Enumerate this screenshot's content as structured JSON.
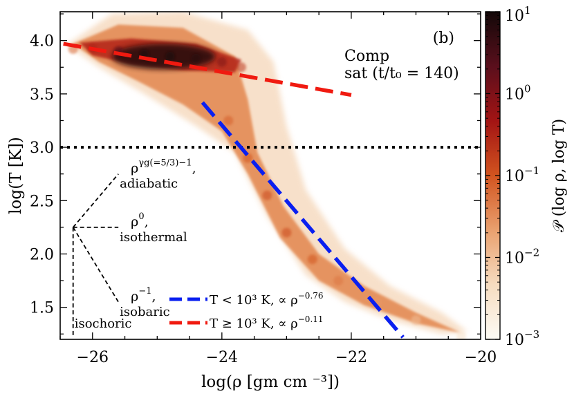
{
  "chart_data": {
    "type": "heatmap",
    "panel_label": "(b)",
    "annotation_line1": "Comp",
    "annotation_line2": "sat (t/t₀ = 140)",
    "xlabel": "log(ρ [gm cm ⁻³])",
    "ylabel": "log(T [K])",
    "xlim": [
      -26.5,
      -20.0
    ],
    "ylim": [
      1.2,
      4.27
    ],
    "x_ticks": [
      -26,
      -24,
      -22,
      -20
    ],
    "x_tick_labels": [
      "−26",
      "−24",
      "−22",
      "−20"
    ],
    "y_ticks": [
      1.5,
      2.0,
      2.5,
      3.0,
      3.5,
      4.0
    ],
    "y_tick_labels": [
      "1.5",
      "2.0",
      "2.5",
      "3.0",
      "3.5",
      "4.0"
    ],
    "colorbar": {
      "label": "𝒫 (log ρ, log T)",
      "scale": "log",
      "range": [
        0.001,
        10
      ],
      "ticks": [
        {
          "exp": 1,
          "label_base": "10",
          "label_exp": "1"
        },
        {
          "exp": 0,
          "label_base": "10",
          "label_exp": "0"
        },
        {
          "exp": -1,
          "label_base": "10",
          "label_exp": "−1"
        },
        {
          "exp": -2,
          "label_base": "10",
          "label_exp": "−2"
        },
        {
          "exp": -3,
          "label_base": "10",
          "label_exp": "−3"
        }
      ],
      "colors": [
        "#fdfbf5",
        "#f6dcc0",
        "#e9a06e",
        "#d2541f",
        "#a31414",
        "#5a0f1c",
        "#120808"
      ]
    },
    "threshold_line": {
      "y": 3.0,
      "style": "dotted",
      "color": "#000000"
    },
    "fits": [
      {
        "name": "T < 10³ K, ∝ ρ^−0.76",
        "legend_main": "T < 10³ K, ∝ ρ",
        "legend_exp": "−0.76",
        "color": "#0a1ff0",
        "slope": -0.76,
        "x": [
          -24.3,
          -21.2
        ],
        "y": [
          3.42,
          1.22
        ]
      },
      {
        "name": "T ≥ 10³ K, ∝ ρ^−0.11",
        "legend_main": "T ≥ 10³ K, ∝ ρ",
        "legend_exp": "−0.11",
        "color": "#f01a10",
        "slope": -0.11,
        "x": [
          -26.45,
          -22.0
        ],
        "y": [
          3.97,
          3.49
        ]
      }
    ],
    "reference_slopes": {
      "origin": {
        "x": -26.3,
        "y": 2.25
      },
      "items": [
        {
          "name": "adiabatic",
          "base": "ρ",
          "exp": "γg(=5/3)−1",
          "suffix": ",",
          "label": "adiabatic",
          "end": {
            "x": -25.6,
            "y": 2.75
          }
        },
        {
          "name": "isothermal",
          "base": "ρ",
          "exp": "0",
          "suffix": ",",
          "label": "isothermal",
          "end": {
            "x": -25.6,
            "y": 2.25
          }
        },
        {
          "name": "isobaric",
          "base": "ρ",
          "exp": "−1",
          "suffix": ",",
          "label": "isobaric",
          "end": {
            "x": -25.6,
            "y": 1.55
          }
        },
        {
          "name": "isochoric",
          "base": "",
          "exp": "",
          "suffix": "",
          "label": "isochoric",
          "end": {
            "x": -26.3,
            "y": 1.22
          }
        }
      ]
    },
    "density_ridge": [
      {
        "x": -26.3,
        "y": 3.92,
        "logP": -1.2
      },
      {
        "x": -26.0,
        "y": 3.93,
        "logP": -0.5
      },
      {
        "x": -25.6,
        "y": 3.9,
        "logP": 0.4
      },
      {
        "x": -25.2,
        "y": 3.87,
        "logP": 0.95
      },
      {
        "x": -24.8,
        "y": 3.85,
        "logP": 1.0
      },
      {
        "x": -24.4,
        "y": 3.83,
        "logP": 0.8
      },
      {
        "x": -24.0,
        "y": 3.8,
        "logP": 0.0
      },
      {
        "x": -23.7,
        "y": 3.75,
        "logP": -0.7
      },
      {
        "x": -23.9,
        "y": 3.25,
        "logP": -1.1
      },
      {
        "x": -23.6,
        "y": 2.9,
        "logP": -1.0
      },
      {
        "x": -23.3,
        "y": 2.55,
        "logP": -0.9
      },
      {
        "x": -23.0,
        "y": 2.2,
        "logP": -0.9
      },
      {
        "x": -22.6,
        "y": 1.95,
        "logP": -1.0
      },
      {
        "x": -22.2,
        "y": 1.75,
        "logP": -1.3
      },
      {
        "x": -21.6,
        "y": 1.55,
        "logP": -1.6
      },
      {
        "x": -21.0,
        "y": 1.38,
        "logP": -2.0
      },
      {
        "x": -20.3,
        "y": 1.23,
        "logP": -2.5
      }
    ]
  }
}
